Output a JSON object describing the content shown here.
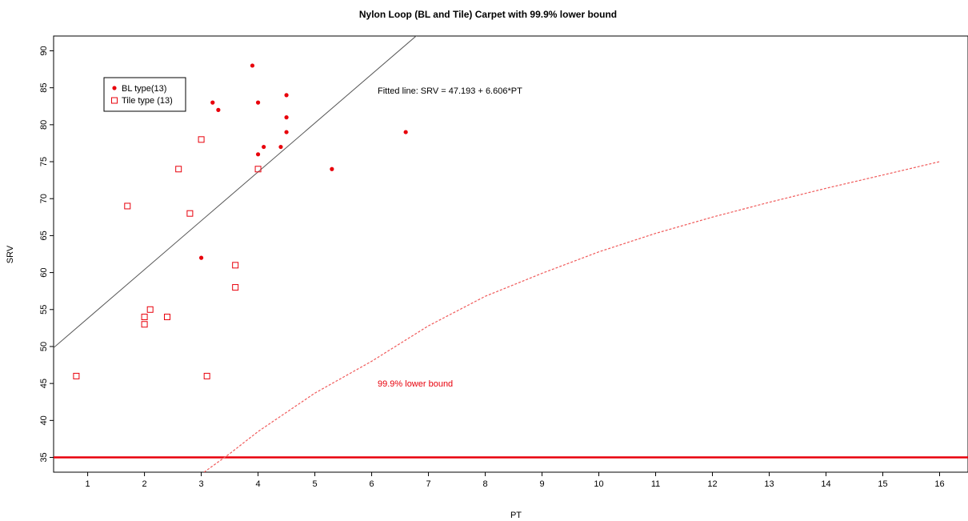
{
  "chart_data": {
    "type": "scatter",
    "title": "Nylon Loop (BL and Tile) Carpet with 99.9% lower bound",
    "xlabel": "PT",
    "ylabel": "SRV",
    "xlim": [
      0.4,
      16.5
    ],
    "ylim": [
      33,
      92
    ],
    "xticks": [
      1,
      2,
      3,
      4,
      5,
      6,
      7,
      8,
      9,
      10,
      11,
      12,
      13,
      14,
      15,
      16
    ],
    "yticks": [
      35,
      40,
      45,
      50,
      55,
      60,
      65,
      70,
      75,
      80,
      85,
      90
    ],
    "grid": false,
    "legend_position": "top-left",
    "series": [
      {
        "name": "BL type(13)",
        "marker": "filled-circle",
        "color": "#e8000b",
        "points": [
          {
            "x": 3.9,
            "y": 88
          },
          {
            "x": 3.2,
            "y": 83
          },
          {
            "x": 3.3,
            "y": 82
          },
          {
            "x": 4.0,
            "y": 83
          },
          {
            "x": 4.5,
            "y": 84
          },
          {
            "x": 4.5,
            "y": 81
          },
          {
            "x": 4.5,
            "y": 79
          },
          {
            "x": 4.1,
            "y": 77
          },
          {
            "x": 4.0,
            "y": 76
          },
          {
            "x": 4.4,
            "y": 77
          },
          {
            "x": 6.6,
            "y": 79
          },
          {
            "x": 5.3,
            "y": 74
          },
          {
            "x": 3.0,
            "y": 62
          }
        ]
      },
      {
        "name": "Tile type (13)",
        "marker": "open-square",
        "color": "#e8000b",
        "points": [
          {
            "x": 3.0,
            "y": 78
          },
          {
            "x": 2.6,
            "y": 74
          },
          {
            "x": 4.0,
            "y": 74
          },
          {
            "x": 1.7,
            "y": 69
          },
          {
            "x": 2.8,
            "y": 68
          },
          {
            "x": 3.6,
            "y": 61
          },
          {
            "x": 3.6,
            "y": 58
          },
          {
            "x": 2.1,
            "y": 55
          },
          {
            "x": 2.0,
            "y": 54
          },
          {
            "x": 2.4,
            "y": 54
          },
          {
            "x": 2.0,
            "y": 53
          },
          {
            "x": 0.8,
            "y": 46
          },
          {
            "x": 3.1,
            "y": 46
          }
        ]
      }
    ],
    "fitted_line": {
      "intercept": 47.193,
      "slope": 6.606,
      "color": "#555555",
      "label": "Fitted line: SRV = 47.193 + 6.606*PT"
    },
    "lower_bound_curve": {
      "label": "99.9% lower bound",
      "color": "#f05a5a",
      "style": "dashed",
      "points": [
        {
          "x": 3.05,
          "y": 33
        },
        {
          "x": 3.5,
          "y": 35.5
        },
        {
          "x": 4,
          "y": 38.5
        },
        {
          "x": 5,
          "y": 43.7
        },
        {
          "x": 6,
          "y": 48
        },
        {
          "x": 7,
          "y": 52.8
        },
        {
          "x": 8,
          "y": 56.8
        },
        {
          "x": 9,
          "y": 59.9
        },
        {
          "x": 10,
          "y": 62.8
        },
        {
          "x": 11,
          "y": 65.3
        },
        {
          "x": 12,
          "y": 67.5
        },
        {
          "x": 13,
          "y": 69.5
        },
        {
          "x": 14,
          "y": 71.4
        },
        {
          "x": 15,
          "y": 73.2
        },
        {
          "x": 16,
          "y": 75
        }
      ]
    },
    "reference_line": {
      "y": 35,
      "color": "#e8000b"
    }
  }
}
